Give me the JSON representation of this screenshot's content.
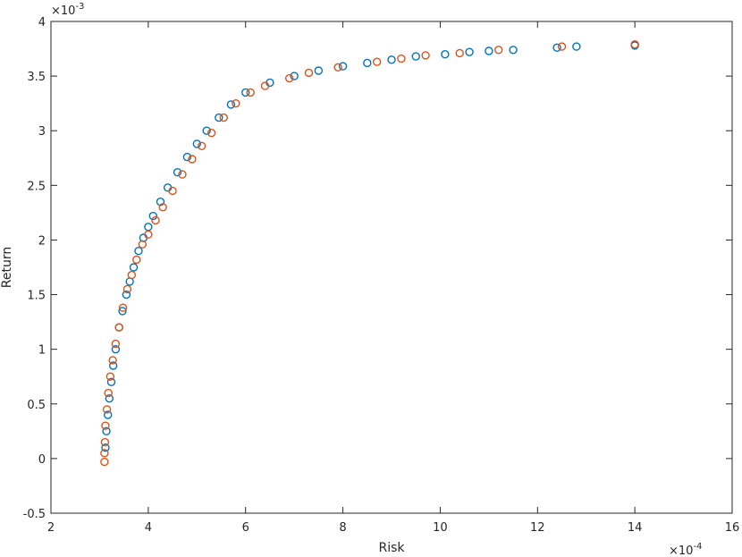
{
  "chart_data": {
    "type": "scatter",
    "xlabel": "Risk",
    "ylabel": "Return",
    "x_multiplier": {
      "base": "×10",
      "exponent": "-4"
    },
    "y_multiplier": {
      "base": "×10",
      "exponent": "-3"
    },
    "xlim": [
      2,
      16
    ],
    "xticks": [
      2,
      4,
      6,
      8,
      10,
      12,
      14,
      16
    ],
    "ylim": [
      -0.5,
      4
    ],
    "yticks": [
      -0.5,
      0,
      0.5,
      1,
      1.5,
      2,
      2.5,
      3,
      3.5,
      4
    ],
    "grid": false,
    "series": [
      {
        "color": "#0072bd",
        "x": [
          3.12,
          3.14,
          3.17,
          3.2,
          3.24,
          3.28,
          3.33,
          3.4,
          3.47,
          3.55,
          3.62,
          3.7,
          3.8,
          3.9,
          4.0,
          4.1,
          4.25,
          4.4,
          4.6,
          4.8,
          5.0,
          5.2,
          5.45,
          5.7,
          6.0,
          6.5,
          7.0,
          7.5,
          8.0,
          8.5,
          9.0,
          9.5,
          10.1,
          10.6,
          11.0,
          11.5,
          12.4,
          12.8,
          14.0
        ],
        "values": [
          0.1,
          0.25,
          0.4,
          0.55,
          0.7,
          0.85,
          1.0,
          1.2,
          1.35,
          1.5,
          1.62,
          1.75,
          1.9,
          2.02,
          2.12,
          2.22,
          2.35,
          2.48,
          2.62,
          2.76,
          2.88,
          3.0,
          3.12,
          3.24,
          3.35,
          3.44,
          3.5,
          3.55,
          3.59,
          3.62,
          3.65,
          3.68,
          3.7,
          3.72,
          3.73,
          3.74,
          3.76,
          3.77,
          3.78
        ]
      },
      {
        "color": "#d95319",
        "x": [
          3.1,
          3.1,
          3.11,
          3.12,
          3.15,
          3.18,
          3.22,
          3.27,
          3.33,
          3.4,
          3.48,
          3.57,
          3.66,
          3.76,
          3.88,
          4.0,
          4.15,
          4.3,
          4.5,
          4.7,
          4.9,
          5.1,
          5.3,
          5.55,
          5.8,
          6.1,
          6.4,
          6.9,
          7.3,
          7.9,
          8.7,
          9.2,
          9.7,
          10.4,
          11.2,
          12.5,
          14.0
        ],
        "values": [
          -0.03,
          0.05,
          0.15,
          0.3,
          0.45,
          0.6,
          0.75,
          0.9,
          1.05,
          1.2,
          1.38,
          1.55,
          1.68,
          1.82,
          1.96,
          2.05,
          2.18,
          2.3,
          2.45,
          2.6,
          2.74,
          2.86,
          2.98,
          3.12,
          3.25,
          3.35,
          3.41,
          3.48,
          3.53,
          3.58,
          3.63,
          3.66,
          3.69,
          3.71,
          3.74,
          3.77,
          3.79
        ]
      }
    ]
  }
}
